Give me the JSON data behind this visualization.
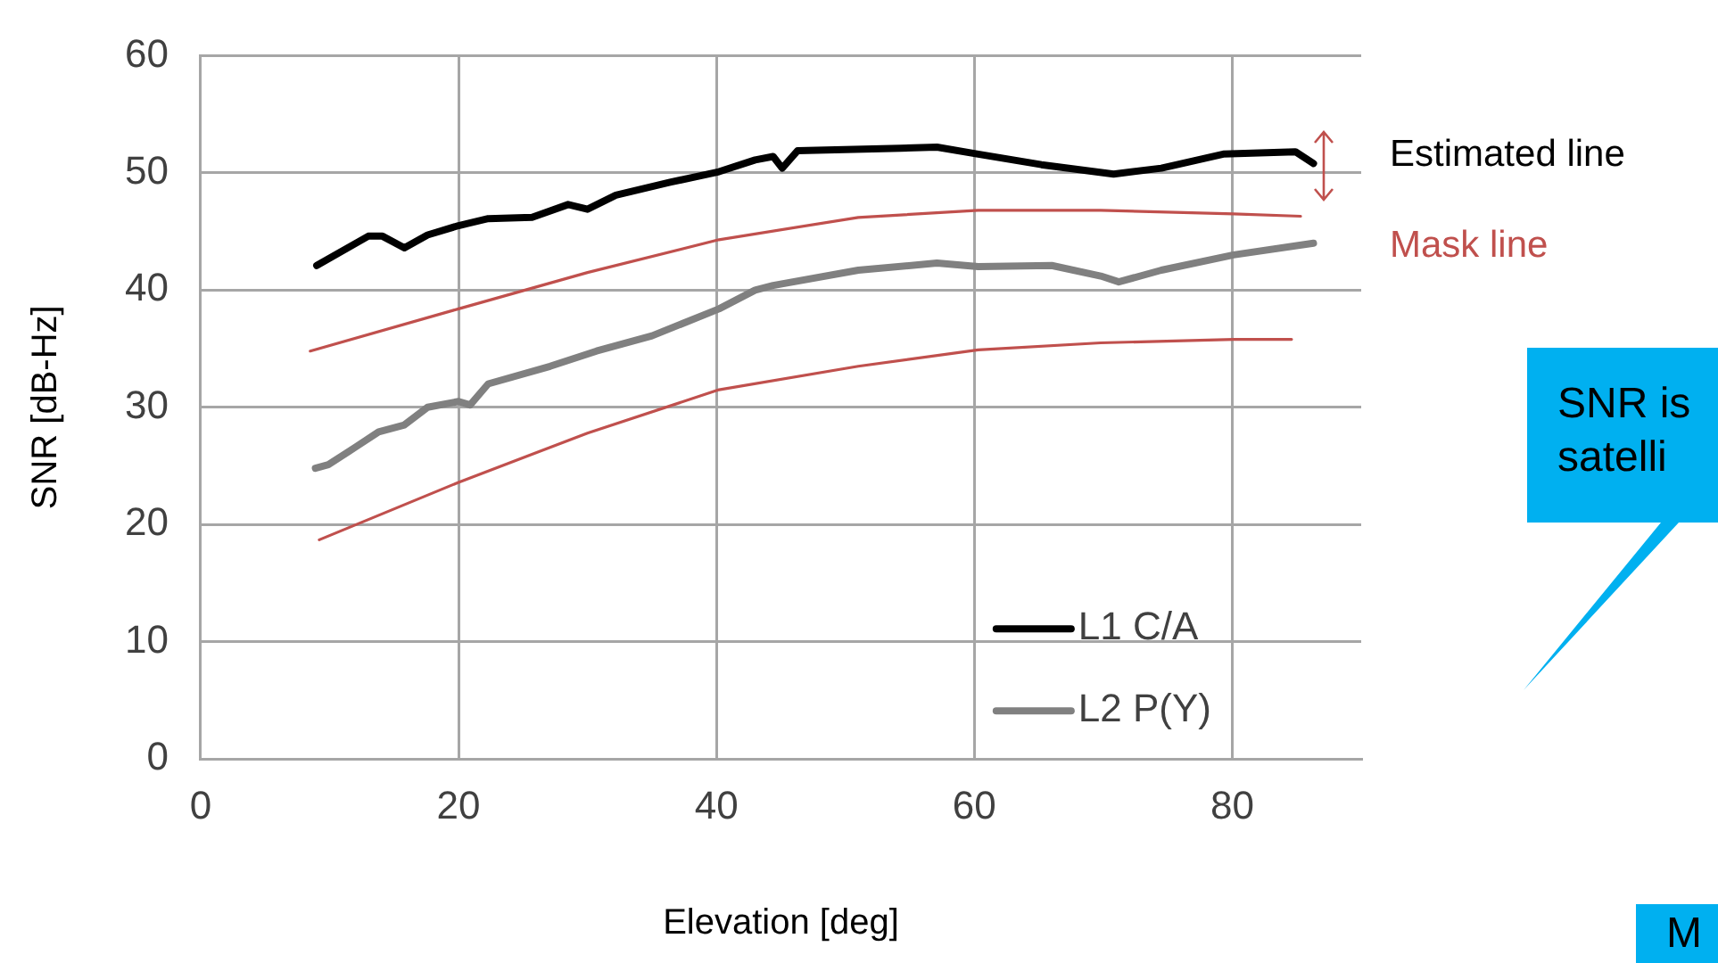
{
  "chart_data": {
    "type": "line",
    "xlabel": "Elevation [deg]",
    "ylabel": "SNR [dB-Hz]",
    "xlim": [
      0,
      90
    ],
    "xticks": [
      0,
      20,
      40,
      60,
      80
    ],
    "ylim": [
      0,
      60
    ],
    "yticks": [
      0,
      10,
      20,
      30,
      40,
      50,
      60
    ],
    "grid": true,
    "legend": "bottom right",
    "marker": "none",
    "line_style": "solid",
    "series": [
      {
        "name": "L1 C/A",
        "color": "#000000",
        "x": [
          9,
          13,
          14.1,
          15.8,
          17.6,
          20,
          22.3,
          25.7,
          28.5,
          30,
          32.2,
          36.4,
          40.2,
          43,
          44.4,
          45.1,
          46.3,
          54.3,
          57.1,
          60.3,
          65.2,
          70.8,
          74.5,
          79.3,
          84.9,
          86.3
        ],
        "values": [
          42.1,
          44.6,
          44.6,
          43.6,
          44.7,
          45.5,
          46.1,
          46.2,
          47.3,
          46.9,
          48.1,
          49.2,
          50.1,
          51.1,
          51.4,
          50.4,
          51.9,
          52.1,
          52.2,
          51.6,
          50.7,
          49.9,
          50.4,
          51.6,
          51.8,
          50.8
        ]
      },
      {
        "name": "L2 P(Y)",
        "color": "#808080",
        "x": [
          8.9,
          9.9,
          12,
          13.8,
          15.8,
          17.6,
          20,
          20.9,
          22.3,
          27.1,
          30.7,
          35,
          40.2,
          43,
          44.4,
          51,
          57.1,
          60.3,
          66,
          69.8,
          71.2,
          74.5,
          80.1,
          86.3
        ],
        "values": [
          24.8,
          25.1,
          26.6,
          27.9,
          28.5,
          30,
          30.5,
          30.2,
          32,
          33.5,
          34.8,
          36.1,
          38.4,
          40,
          40.4,
          41.7,
          42.3,
          42,
          42.1,
          41.2,
          40.7,
          41.7,
          43,
          44
        ]
      },
      {
        "color": "#c0504d",
        "x": [
          8.5,
          20,
          30,
          40.2,
          51,
          60.3,
          69.8,
          80.1,
          85.3
        ],
        "values": [
          34.8,
          38.4,
          41.5,
          44.3,
          46.2,
          46.8,
          46.8,
          46.5,
          46.3
        ]
      },
      {
        "color": "#c0504d",
        "x": [
          9.2,
          20,
          30,
          40.2,
          51,
          60.3,
          69.8,
          80.1,
          84.6
        ],
        "values": [
          18.7,
          23.6,
          27.8,
          31.5,
          33.5,
          34.9,
          35.5,
          35.8,
          35.8
        ]
      }
    ],
    "annotations": [
      "Estimated line",
      "Mask line",
      "SNR is",
      "satelli",
      "M"
    ]
  }
}
